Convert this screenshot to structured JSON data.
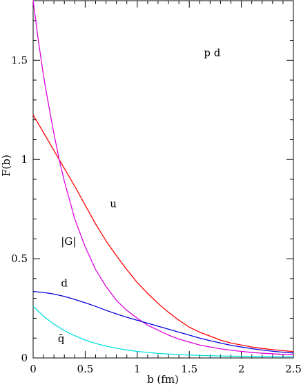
{
  "chart_data": {
    "type": "line",
    "title": "",
    "xlabel": "b (fm)",
    "ylabel": "F(b)",
    "xlim": [
      0,
      2.5
    ],
    "ylim": [
      0,
      1.8
    ],
    "x_ticks": [
      0,
      0.5,
      1,
      1.5,
      2,
      2.5
    ],
    "x_tick_labels": [
      "0",
      "0.5",
      "1",
      "1.5",
      "2",
      "2.5"
    ],
    "y_ticks": [
      0,
      0.5,
      1,
      1.5
    ],
    "y_tick_labels": [
      "0",
      "0.5",
      "1",
      "1.5"
    ],
    "x_minor_step": 0.1,
    "y_minor_step": 0.1,
    "grid": false,
    "annotations": [
      {
        "text": "p d",
        "x": 1.72,
        "y": 1.52
      },
      {
        "text": "u",
        "x": 0.77,
        "y": 0.76
      },
      {
        "text": "|G|",
        "x": 0.34,
        "y": 0.57
      },
      {
        "text": "d",
        "x": 0.3,
        "y": 0.36
      },
      {
        "text": "q̄",
        "x": 0.27,
        "y": 0.08
      }
    ],
    "series": [
      {
        "color": "#ff0000",
        "x": [
          0,
          0.1,
          0.2,
          0.25,
          0.3,
          0.4,
          0.5,
          0.6,
          0.7,
          0.8,
          0.9,
          1.0,
          1.1,
          1.2,
          1.3,
          1.4,
          1.5,
          1.6,
          1.7,
          1.8,
          1.9,
          2.0,
          2.1,
          2.2,
          2.3,
          2.4,
          2.5
        ],
        "values": [
          1.225,
          1.135,
          1.045,
          1.0,
          0.955,
          0.865,
          0.77,
          0.675,
          0.59,
          0.515,
          0.445,
          0.38,
          0.325,
          0.275,
          0.23,
          0.19,
          0.155,
          0.13,
          0.11,
          0.09,
          0.075,
          0.065,
          0.055,
          0.048,
          0.042,
          0.037,
          0.032
        ]
      },
      {
        "color": "#e000e0",
        "x": [
          0,
          0.05,
          0.1,
          0.15,
          0.2,
          0.25,
          0.3,
          0.4,
          0.5,
          0.6,
          0.7,
          0.8,
          0.9,
          1.0,
          1.1,
          1.2,
          1.3,
          1.4,
          1.5,
          1.6,
          1.7,
          1.8,
          1.9,
          2.0,
          2.1,
          2.2,
          2.3,
          2.4,
          2.5
        ],
        "values": [
          1.8,
          1.6,
          1.42,
          1.27,
          1.13,
          1.0,
          0.89,
          0.7,
          0.56,
          0.445,
          0.36,
          0.29,
          0.24,
          0.2,
          0.165,
          0.14,
          0.115,
          0.095,
          0.08,
          0.065,
          0.055,
          0.046,
          0.039,
          0.033,
          0.028,
          0.024,
          0.021,
          0.018,
          0.016
        ]
      },
      {
        "color": "#0000dd",
        "x": [
          0,
          0.1,
          0.2,
          0.3,
          0.4,
          0.5,
          0.6,
          0.7,
          0.8,
          0.9,
          1.0,
          1.1,
          1.2,
          1.3,
          1.4,
          1.5,
          1.6,
          1.7,
          1.8,
          1.9,
          2.0,
          2.1,
          2.2,
          2.3,
          2.4,
          2.5
        ],
        "values": [
          0.335,
          0.33,
          0.322,
          0.31,
          0.295,
          0.278,
          0.26,
          0.24,
          0.222,
          0.205,
          0.19,
          0.175,
          0.16,
          0.145,
          0.13,
          0.115,
          0.1,
          0.087,
          0.075,
          0.064,
          0.055,
          0.047,
          0.04,
          0.034,
          0.029,
          0.025
        ]
      },
      {
        "color": "#00e0e0",
        "x": [
          0,
          0.05,
          0.1,
          0.2,
          0.3,
          0.4,
          0.5,
          0.6,
          0.7,
          0.8,
          0.9,
          1.0,
          1.2,
          1.4,
          1.6,
          1.8,
          2.0,
          2.2,
          2.4,
          2.5
        ],
        "values": [
          0.26,
          0.235,
          0.21,
          0.17,
          0.138,
          0.112,
          0.09,
          0.073,
          0.06,
          0.049,
          0.04,
          0.033,
          0.023,
          0.017,
          0.013,
          0.01,
          0.008,
          0.007,
          0.006,
          0.006
        ]
      }
    ]
  }
}
